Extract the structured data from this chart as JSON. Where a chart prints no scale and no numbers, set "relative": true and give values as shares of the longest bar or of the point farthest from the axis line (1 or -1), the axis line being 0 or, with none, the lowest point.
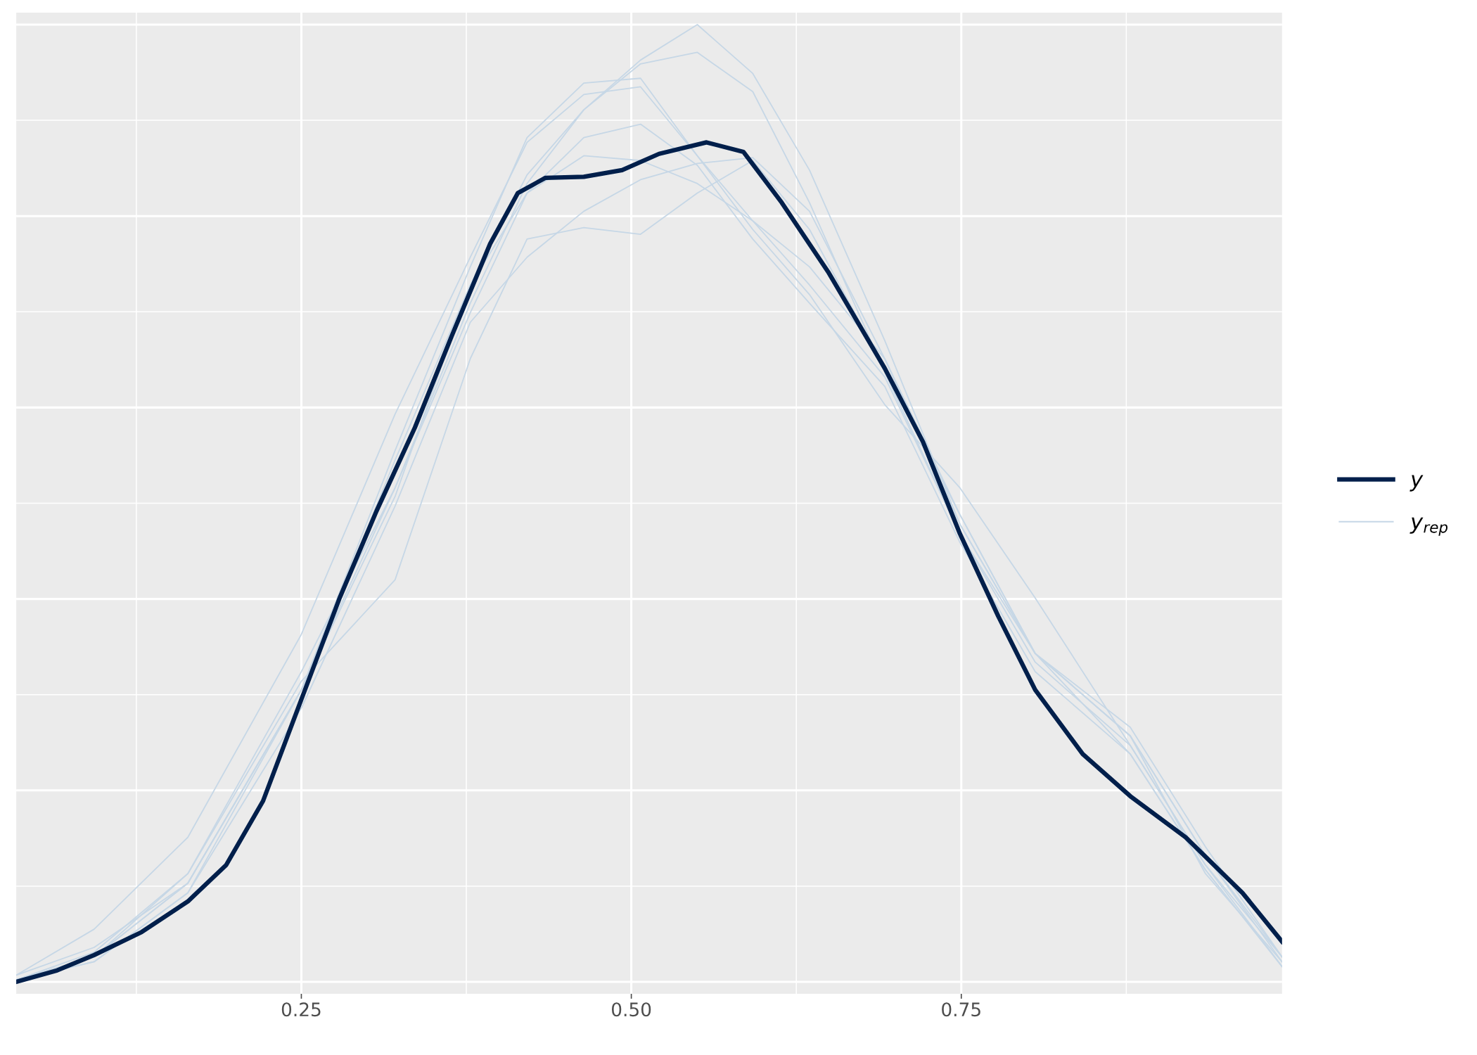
{
  "chart_data": {
    "type": "line",
    "relative": true,
    "grid": true,
    "legend": "right",
    "marker": "none",
    "line_style": "solid",
    "xlim": [
      0.034,
      0.993
    ],
    "xticks": [
      {
        "value": 0.25,
        "label": "0.25"
      },
      {
        "value": 0.5,
        "label": "0.50"
      },
      {
        "value": 0.75,
        "label": "0.75"
      }
    ],
    "tick_labels": "x",
    "series": [
      {
        "name": "y$_{rep}$",
        "color": "#c6d7e6",
        "x": [
          0.034,
          0.093,
          0.164,
          0.25,
          0.321,
          0.378,
          0.421,
          0.464,
          0.507,
          0.55,
          0.592,
          0.635,
          0.692,
          0.749,
          0.806,
          0.878,
          0.935,
          0.993
        ],
        "values": [
          0.002,
          0.026,
          0.113,
          0.324,
          0.516,
          0.709,
          0.834,
          0.911,
          0.963,
          1.0,
          0.949,
          0.848,
          0.67,
          0.478,
          0.343,
          0.238,
          0.117,
          0.016
        ]
      },
      {
        "color": "#c6d7e6",
        "x": [
          0.034,
          0.093,
          0.164,
          0.25,
          0.321,
          0.378,
          0.421,
          0.464,
          0.507,
          0.55,
          0.592,
          0.635,
          0.692,
          0.749,
          0.806,
          0.878,
          0.935,
          0.993
        ],
        "values": [
          0.002,
          0.021,
          0.093,
          0.305,
          0.545,
          0.728,
          0.843,
          0.911,
          0.959,
          0.971,
          0.93,
          0.814,
          0.637,
          0.468,
          0.343,
          0.257,
          0.113,
          0.021
        ]
      },
      {
        "color": "#c6d7e6",
        "x": [
          0.034,
          0.093,
          0.164,
          0.25,
          0.321,
          0.378,
          0.421,
          0.464,
          0.507,
          0.55,
          0.592,
          0.635,
          0.692,
          0.749,
          0.806,
          0.878,
          0.935,
          0.993
        ],
        "values": [
          0.007,
          0.055,
          0.151,
          0.363,
          0.593,
          0.757,
          0.877,
          0.927,
          0.935,
          0.863,
          0.786,
          0.718,
          0.603,
          0.516,
          0.401,
          0.247,
          0.122,
          0.026
        ]
      },
      {
        "color": "#c6d7e6",
        "x": [
          0.034,
          0.093,
          0.164,
          0.25,
          0.321,
          0.378,
          0.421,
          0.464,
          0.507,
          0.55,
          0.592,
          0.635,
          0.692,
          0.749,
          0.806,
          0.878,
          0.935,
          0.993
        ],
        "values": [
          0.002,
          0.026,
          0.103,
          0.305,
          0.555,
          0.747,
          0.882,
          0.939,
          0.944,
          0.863,
          0.795,
          0.728,
          0.632,
          0.468,
          0.334,
          0.247,
          0.122,
          0.016
        ]
      },
      {
        "color": "#c6d7e6",
        "x": [
          0.034,
          0.093,
          0.164,
          0.25,
          0.321,
          0.378,
          0.421,
          0.464,
          0.507,
          0.55,
          0.592,
          0.635,
          0.692,
          0.749,
          0.806,
          0.878,
          0.935,
          0.993
        ],
        "values": [
          0.002,
          0.031,
          0.113,
          0.314,
          0.42,
          0.651,
          0.776,
          0.788,
          0.781,
          0.824,
          0.858,
          0.786,
          0.641,
          0.488,
          0.343,
          0.257,
          0.132,
          0.026
        ]
      },
      {
        "color": "#c6d7e6",
        "x": [
          0.034,
          0.093,
          0.164,
          0.25,
          0.321,
          0.378,
          0.421,
          0.464,
          0.507,
          0.55,
          0.592,
          0.635,
          0.692,
          0.749,
          0.806,
          0.878,
          0.935,
          0.993
        ],
        "values": [
          0.002,
          0.026,
          0.103,
          0.305,
          0.507,
          0.728,
          0.824,
          0.882,
          0.896,
          0.853,
          0.776,
          0.709,
          0.622,
          0.459,
          0.324,
          0.238,
          0.117,
          0.016
        ]
      },
      {
        "color": "#c6d7e6",
        "x": [
          0.034,
          0.093,
          0.164,
          0.25,
          0.321,
          0.378,
          0.421,
          0.464,
          0.507,
          0.55,
          0.592,
          0.635,
          0.692,
          0.749,
          0.806,
          0.878,
          0.935,
          0.993
        ],
        "values": [
          0.002,
          0.021,
          0.093,
          0.286,
          0.497,
          0.689,
          0.757,
          0.805,
          0.838,
          0.855,
          0.861,
          0.805,
          0.651,
          0.478,
          0.343,
          0.266,
          0.141,
          0.026
        ]
      },
      {
        "color": "#c6d7e6",
        "x": [
          0.034,
          0.093,
          0.164,
          0.25,
          0.321,
          0.378,
          0.421,
          0.464,
          0.507,
          0.55,
          0.592,
          0.635,
          0.692,
          0.749,
          0.806,
          0.878,
          0.935,
          0.993
        ],
        "values": [
          0.007,
          0.036,
          0.103,
          0.305,
          0.516,
          0.699,
          0.824,
          0.863,
          0.858,
          0.834,
          0.795,
          0.747,
          0.651,
          0.488,
          0.343,
          0.257,
          0.132,
          0.021
        ]
      },
      {
        "name": "y",
        "color": "#011f4b",
        "x": [
          0.034,
          0.065,
          0.093,
          0.129,
          0.164,
          0.193,
          0.221,
          0.25,
          0.279,
          0.307,
          0.336,
          0.364,
          0.393,
          0.414,
          0.435,
          0.464,
          0.493,
          0.521,
          0.557,
          0.585,
          0.614,
          0.649,
          0.692,
          0.721,
          0.749,
          0.778,
          0.806,
          0.842,
          0.878,
          0.92,
          0.963,
          0.993
        ],
        "values": [
          0.0,
          0.012,
          0.028,
          0.052,
          0.084,
          0.122,
          0.189,
          0.295,
          0.401,
          0.492,
          0.579,
          0.675,
          0.771,
          0.824,
          0.84,
          0.841,
          0.848,
          0.865,
          0.877,
          0.867,
          0.814,
          0.742,
          0.641,
          0.564,
          0.468,
          0.382,
          0.305,
          0.238,
          0.194,
          0.151,
          0.093,
          0.042
        ]
      }
    ]
  }
}
